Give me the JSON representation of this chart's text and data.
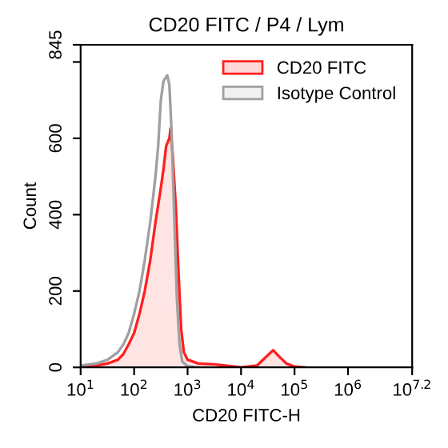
{
  "chart_data": {
    "type": "area",
    "title": "CD20 FITC / P4 / Lym",
    "xlabel": "CD20 FITC-H",
    "ylabel": "Count",
    "log": "x",
    "xlim": [
      10,
      15848932
    ],
    "ylim": [
      0,
      845
    ],
    "xticks": [
      {
        "value": 10,
        "label": "10$^{1}$"
      },
      {
        "value": 100,
        "label": "10$^{2}$"
      },
      {
        "value": 1000,
        "label": "10$^{3}$"
      },
      {
        "value": 10000,
        "label": "10$^{4}$"
      },
      {
        "value": 100000,
        "label": "10$^{5}$"
      },
      {
        "value": 1000000,
        "label": "10$^{6}$"
      },
      {
        "value": 15848932,
        "label": "10$^{7.2}$"
      }
    ],
    "yticks": [
      0,
      200,
      400,
      600,
      {
        "value": 800,
        "label": null
      },
      845
    ],
    "legend": "top right",
    "grid": false,
    "series": [
      {
        "name": "CD20 FITC",
        "color": "#ff2020",
        "x": [
          10,
          20,
          32,
          50,
          63,
          79,
          100,
          126,
          158,
          200,
          251,
          316,
          355,
          398,
          457,
          479,
          525,
          603,
          676,
          759,
          851,
          1000,
          1585,
          3162,
          6310,
          10000,
          19953,
          28184,
          39811,
          50119,
          70795,
          100000,
          158489
        ],
        "values": [
          2,
          5,
          10,
          20,
          35,
          60,
          90,
          140,
          200,
          280,
          380,
          470,
          520,
          580,
          600,
          625,
          560,
          420,
          250,
          100,
          40,
          20,
          10,
          8,
          3,
          0,
          5,
          25,
          45,
          30,
          10,
          2,
          0
        ]
      },
      {
        "name": "Isotype Control",
        "type": "line",
        "color": "#a0a0a0",
        "x": [
          10,
          20,
          32,
          40,
          50,
          63,
          79,
          100,
          126,
          158,
          200,
          251,
          282,
          316,
          355,
          417,
          457,
          501,
          562,
          631,
          708,
          794,
          1000,
          1585
        ],
        "values": [
          5,
          10,
          20,
          30,
          40,
          60,
          90,
          140,
          200,
          280,
          380,
          500,
          580,
          700,
          750,
          765,
          740,
          620,
          400,
          180,
          60,
          15,
          3,
          0
        ]
      }
    ]
  }
}
